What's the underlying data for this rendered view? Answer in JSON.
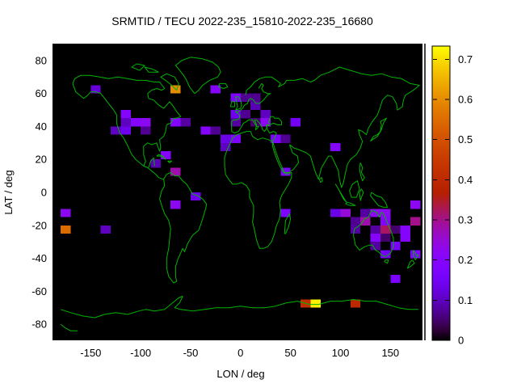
{
  "title": "SRMTID / TECU 2022-235_15810-2022-235_16680",
  "chart_data": {
    "type": "heatmap",
    "title": "SRMTID / TECU 2022-235_15810-2022-235_16680",
    "xlabel": "LON / deg",
    "ylabel": "LAT / deg",
    "xlim": [
      -180,
      180
    ],
    "ylim": [
      -90,
      90
    ],
    "grid": false,
    "background": "#000000",
    "coastline_color": "#00b400",
    "palette": "gnuplot pm3d black-purple-red-yellow",
    "x_tick_values": [
      -150,
      -100,
      -50,
      0,
      50,
      100,
      150
    ],
    "x_tick_labels": [
      "-150",
      "-100",
      "-50",
      "0",
      "50",
      "100",
      "150"
    ],
    "y_tick_values": [
      80,
      60,
      40,
      20,
      0,
      -20,
      -40,
      -60,
      -80
    ],
    "y_tick_labels": [
      "80",
      "60",
      "40",
      "20",
      "0",
      "-20",
      "-40",
      "-60",
      "-80"
    ],
    "colorbar": {
      "min": 0,
      "max": 0.733,
      "tick_values": [
        0,
        0.1,
        0.2,
        0.3,
        0.4,
        0.5,
        0.6,
        0.7
      ],
      "tick_labels": [
        "0",
        "0.1",
        "0.2",
        "0.3",
        "0.4",
        "0.5",
        "0.6",
        "0.7"
      ],
      "position": "right"
    },
    "cell_size": {
      "dlon": 10,
      "dlat": 5
    },
    "cells": [
      [
        -175,
        -12.5,
        0.22
      ],
      [
        -175,
        -22.5,
        0.55
      ],
      [
        -135,
        -22.5,
        0.1
      ],
      [
        -145,
        62.5,
        0.12
      ],
      [
        -65,
        62.5,
        0.6
      ],
      [
        -115,
        47.5,
        0.2
      ],
      [
        -115,
        42.5,
        0.1
      ],
      [
        -105,
        42.5,
        0.2
      ],
      [
        -95,
        42.5,
        0.22
      ],
      [
        -125,
        37.5,
        0.1
      ],
      [
        -115,
        37.5,
        0.14
      ],
      [
        -95,
        37.5,
        0.07
      ],
      [
        -65,
        42.5,
        0.2
      ],
      [
        -55,
        42.5,
        0.08
      ],
      [
        -35,
        37.5,
        0.2
      ],
      [
        -25,
        37.5,
        0.07
      ],
      [
        -75,
        22.5,
        0.2
      ],
      [
        -85,
        17.5,
        0.09
      ],
      [
        -65,
        12.5,
        0.28
      ],
      [
        -45,
        -2.5,
        0.14
      ],
      [
        -65,
        -7.5,
        0.22
      ],
      [
        -25,
        62.5,
        0.2
      ],
      [
        -5,
        57.5,
        0.18
      ],
      [
        5,
        57.5,
        0.07
      ],
      [
        15,
        57.5,
        0.07
      ],
      [
        15,
        52.5,
        0.09
      ],
      [
        -5,
        47.5,
        0.14
      ],
      [
        5,
        47.5,
        0.07
      ],
      [
        25,
        47.5,
        0.1
      ],
      [
        -5,
        42.5,
        0.08
      ],
      [
        15,
        42.5,
        0.05
      ],
      [
        25,
        42.5,
        0.22
      ],
      [
        -15,
        32.5,
        0.13
      ],
      [
        -5,
        32.5,
        0.18
      ],
      [
        -15,
        27.5,
        0.1
      ],
      [
        35,
        32.5,
        0.18
      ],
      [
        45,
        32.5,
        0.07
      ],
      [
        55,
        42.5,
        0.15
      ],
      [
        45,
        12.5,
        0.17
      ],
      [
        95,
        27.5,
        0.2
      ],
      [
        45,
        -12.5,
        0.18
      ],
      [
        95,
        -12.5,
        0.13
      ],
      [
        105,
        -12.5,
        0.25
      ],
      [
        125,
        -12.5,
        0.08
      ],
      [
        135,
        -12.5,
        0.22
      ],
      [
        145,
        -12.5,
        0.22
      ],
      [
        115,
        -17.5,
        0.07
      ],
      [
        125,
        -17.5,
        0.28
      ],
      [
        145,
        -17.5,
        0.2
      ],
      [
        175,
        -17.5,
        0.3
      ],
      [
        175,
        -7.5,
        0.22
      ],
      [
        115,
        -22.5,
        0.08
      ],
      [
        135,
        -22.5,
        0.08
      ],
      [
        145,
        -22.5,
        0.32
      ],
      [
        155,
        -22.5,
        0.05
      ],
      [
        165,
        -22.5,
        0.2
      ],
      [
        135,
        -27.5,
        0.2
      ],
      [
        145,
        -27.5,
        0.05
      ],
      [
        165,
        -27.5,
        0.2
      ],
      [
        135,
        -32.5,
        0.08
      ],
      [
        155,
        -32.5,
        0.17
      ],
      [
        145,
        -37.5,
        0.15
      ],
      [
        175,
        -37.5,
        0.18
      ],
      [
        155,
        -52.5,
        0.17
      ],
      [
        65,
        -67.5,
        0.42
      ],
      [
        75,
        -67.5,
        0.72
      ],
      [
        115,
        -67.5,
        0.4
      ]
    ]
  }
}
